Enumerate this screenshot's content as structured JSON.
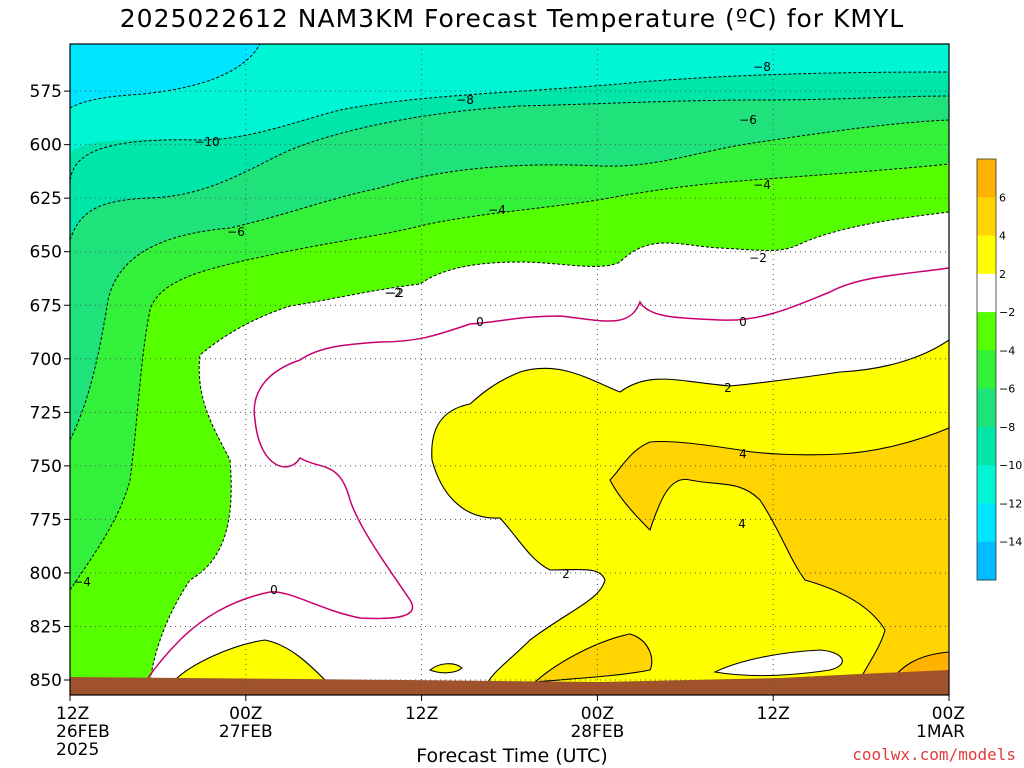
{
  "chart_data": {
    "type": "heatmap",
    "title": "2025022612 NAM3KM Forecast Temperature (ºC) for KMYL",
    "xlabel": "Forecast Time (UTC)",
    "ylabel": "",
    "y_axis": {
      "ticks": [
        575,
        600,
        625,
        650,
        675,
        700,
        725,
        750,
        775,
        800,
        825,
        850
      ],
      "inverted": true,
      "range": [
        553,
        857
      ]
    },
    "x_axis": {
      "range": [
        0,
        60
      ],
      "ticks": [
        {
          "hour": 0,
          "lines": [
            "12Z",
            "26FEB",
            "2025"
          ]
        },
        {
          "hour": 12,
          "lines": [
            "00Z",
            "27FEB"
          ]
        },
        {
          "hour": 24,
          "lines": [
            "12Z"
          ]
        },
        {
          "hour": 36,
          "lines": [
            "00Z",
            "28FEB"
          ]
        },
        {
          "hour": 48,
          "lines": [
            "12Z"
          ]
        },
        {
          "hour": 60,
          "lines": [
            "00Z",
            "1MAR"
          ]
        }
      ]
    },
    "colorbar": {
      "labels": [
        "6",
        "4",
        "2",
        "−2",
        "−4",
        "−6",
        "−8",
        "−10",
        "−12",
        "−14"
      ],
      "bins": [
        {
          "range": [
            6,
            8
          ],
          "color": "#ffb200"
        },
        {
          "range": [
            4,
            6
          ],
          "color": "#ffd400"
        },
        {
          "range": [
            2,
            4
          ],
          "color": "#ffff00"
        },
        {
          "range": [
            -2,
            2
          ],
          "color": "#ffffff"
        },
        {
          "range": [
            -4,
            -2
          ],
          "color": "#55ff00"
        },
        {
          "range": [
            -6,
            -4
          ],
          "color": "#33f03a"
        },
        {
          "range": [
            -8,
            -6
          ],
          "color": "#1fe37a"
        },
        {
          "range": [
            -10,
            -8
          ],
          "color": "#00e6a8"
        },
        {
          "range": [
            -12,
            -10
          ],
          "color": "#00f5d4"
        },
        {
          "range": [
            -14,
            -12
          ],
          "color": "#00e5ff"
        },
        {
          "range": [
            -16,
            -14
          ],
          "color": "#00bbff"
        }
      ]
    },
    "contour_labels": [
      "−8",
      "−8",
      "−6",
      "−4",
      "−4",
      "−2",
      "−2",
      "0",
      "0",
      "−10",
      "−6",
      "−2",
      "−4",
      "0",
      "2",
      "2",
      "4",
      "4"
    ],
    "ground_color": "#a0522d",
    "colors": {
      "frame": "#000000",
      "zero_isotherm": "#c8006e",
      "grid": "#555555"
    }
  },
  "credit": "coolwx.com/models"
}
